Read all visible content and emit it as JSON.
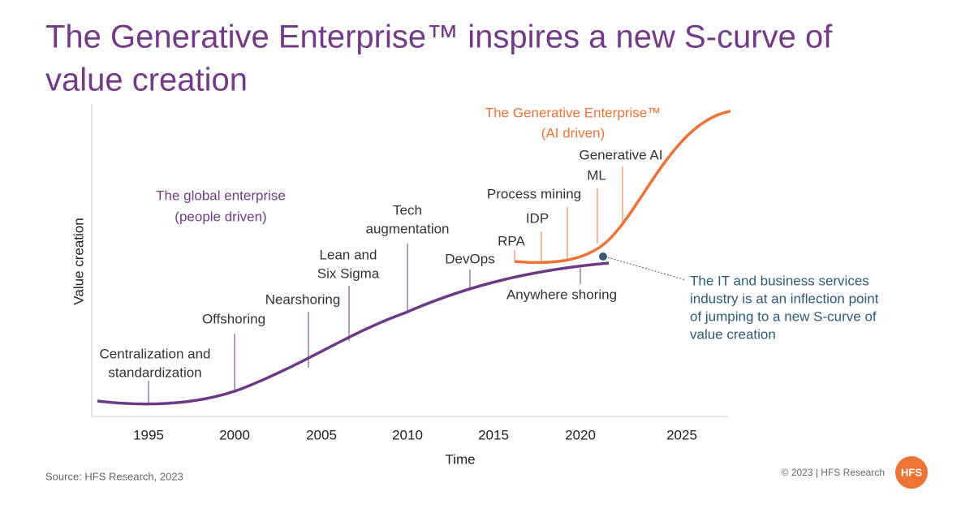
{
  "title": [
    "The Generative Enterprise™ inspires a new S-curve of",
    "value creation"
  ],
  "axes": {
    "y_label": "Value creation",
    "x_label": "Time",
    "x_ticks": [
      "1995",
      "2000",
      "2005",
      "2010",
      "2015",
      "2020",
      "2025"
    ]
  },
  "curves": {
    "global": {
      "label": [
        "The global enterprise",
        "(people driven)"
      ],
      "milestones": [
        [
          "Centralization and",
          "standardization"
        ],
        [
          "Offshoring"
        ],
        [
          "Nearshoring"
        ],
        [
          "Lean and",
          "Six Sigma"
        ],
        [
          "Tech",
          "augmentation"
        ],
        [
          "DevOps"
        ],
        [
          "Anywhere shoring"
        ]
      ]
    },
    "generative": {
      "label": [
        "The Generative Enterprise™",
        "(AI driven)"
      ],
      "milestones": [
        [
          "RPA"
        ],
        [
          "IDP"
        ],
        [
          "Process mining"
        ],
        [
          "ML"
        ],
        [
          "Generative AI"
        ]
      ]
    }
  },
  "annotation": [
    "The IT and business services",
    "industry is at an inflection point",
    "of jumping to a new S-curve of",
    "value creation"
  ],
  "source": "Source: HFS Research, 2023",
  "copyright": "© 2023 | HFS Research",
  "logo": "HFS"
}
